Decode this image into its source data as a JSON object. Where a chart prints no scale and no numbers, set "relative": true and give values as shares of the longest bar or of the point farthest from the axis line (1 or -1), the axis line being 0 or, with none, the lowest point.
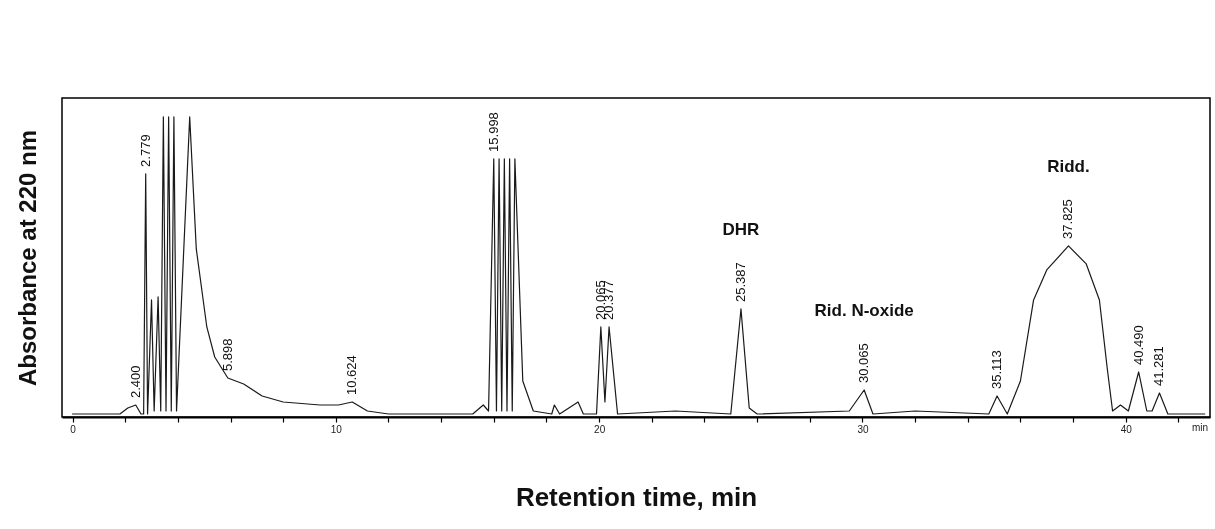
{
  "chart_data": {
    "type": "line",
    "relative": true,
    "xlabel": "Retention time, min",
    "ylabel": "Absorbance at 220 nm",
    "color": "#1a1a1a",
    "x": [
      0,
      1.8,
      2.1,
      2.4,
      2.6,
      2.7,
      2.779,
      2.85,
      3.0,
      3.1,
      3.25,
      3.35,
      3.45,
      3.55,
      3.65,
      3.75,
      3.85,
      3.95,
      4.45,
      4.7,
      5.1,
      5.4,
      5.898,
      6.5,
      7.2,
      8.0,
      9.4,
      10.1,
      10.624,
      11.2,
      12,
      15.2,
      15.6,
      15.8,
      15.998,
      16.1,
      16.2,
      16.3,
      16.4,
      16.5,
      16.6,
      16.7,
      16.8,
      17.1,
      17.5,
      18.2,
      18.3,
      18.5,
      19.2,
      19.4,
      19.9,
      20.065,
      20.22,
      20.377,
      20.7,
      22.9,
      25.0,
      25.387,
      25.7,
      26.0,
      29.5,
      30.065,
      30.4,
      32,
      34.8,
      35.113,
      35.5,
      36.0,
      36.5,
      37.0,
      37.825,
      38.5,
      39.0,
      39.3,
      39.5,
      39.8,
      40.1,
      40.49,
      40.8,
      41.0,
      41.281,
      41.6,
      43
    ],
    "values": [
      0.01,
      0.01,
      0.03,
      0.04,
      0.01,
      0.01,
      0.81,
      0.01,
      0.39,
      0.02,
      0.4,
      0.02,
      1,
      0.02,
      1,
      0.02,
      1,
      0.02,
      1,
      0.56,
      0.3,
      0.2,
      0.13,
      0.11,
      0.07,
      0.05,
      0.04,
      0.04,
      0.05,
      0.02,
      0.01,
      0.01,
      0.04,
      0.02,
      0.86,
      0.02,
      0.86,
      0.02,
      0.86,
      0.02,
      0.86,
      0.02,
      0.86,
      0.12,
      0.02,
      0.01,
      0.04,
      0.01,
      0.05,
      0.01,
      0.01,
      0.3,
      0.05,
      0.3,
      0.01,
      0.02,
      0.01,
      0.36,
      0.03,
      0.01,
      0.02,
      0.09,
      0.01,
      0.02,
      0.01,
      0.07,
      0.01,
      0.12,
      0.39,
      0.49,
      0.57,
      0.51,
      0.39,
      0.16,
      0.02,
      0.04,
      0.02,
      0.15,
      0.02,
      0.02,
      0.08,
      0.01,
      0.01
    ],
    "xlim": [
      -0.4,
      43.2
    ],
    "xticks": [
      0,
      {
        "value": 2,
        "label": null
      },
      {
        "value": 4,
        "label": null
      },
      {
        "value": 6,
        "label": null
      },
      {
        "value": 8,
        "label": null
      },
      10,
      {
        "value": 12,
        "label": null
      },
      {
        "value": 14,
        "label": null
      },
      {
        "value": 16,
        "label": null
      },
      {
        "value": 18,
        "label": null
      },
      20,
      {
        "value": 22,
        "label": null
      },
      {
        "value": 24,
        "label": null
      },
      {
        "value": 26,
        "label": null
      },
      {
        "value": 28,
        "label": null
      },
      30,
      {
        "value": 32,
        "label": null
      },
      {
        "value": 34,
        "label": null
      },
      {
        "value": 36,
        "label": null
      },
      {
        "value": 38,
        "label": null
      },
      40,
      {
        "value": 42,
        "label": null
      }
    ],
    "annotations": [
      "min",
      {
        "text": "2.400",
        "x": 2.4,
        "y": 0.04
      },
      {
        "text": "2.779",
        "x": 2.779,
        "y": 0.81
      },
      {
        "text": "5.898",
        "x": 5.898,
        "y": 0.13
      },
      {
        "text": "10.624",
        "x": 10.624,
        "y": 0.05
      },
      {
        "text": "15.998",
        "x": 15.998,
        "y": 0.86
      },
      {
        "text": "20.065",
        "x": 20.065,
        "y": 0.3
      },
      {
        "text": "20.377",
        "x": 20.377,
        "y": 0.3
      },
      {
        "text": "25.387",
        "x": 25.387,
        "y": 0.36
      },
      "DHR",
      {
        "text": "30.065",
        "x": 30.065,
        "y": 0.09
      },
      "Rid. N-oxide",
      {
        "text": "35.113",
        "x": 35.113,
        "y": 0.07
      },
      {
        "text": "37.825",
        "x": 37.825,
        "y": 0.57
      },
      "Ridd.",
      {
        "text": "40.490",
        "x": 40.49,
        "y": 0.15
      },
      {
        "text": "41.281",
        "x": 41.281,
        "y": 0.08
      }
    ]
  }
}
